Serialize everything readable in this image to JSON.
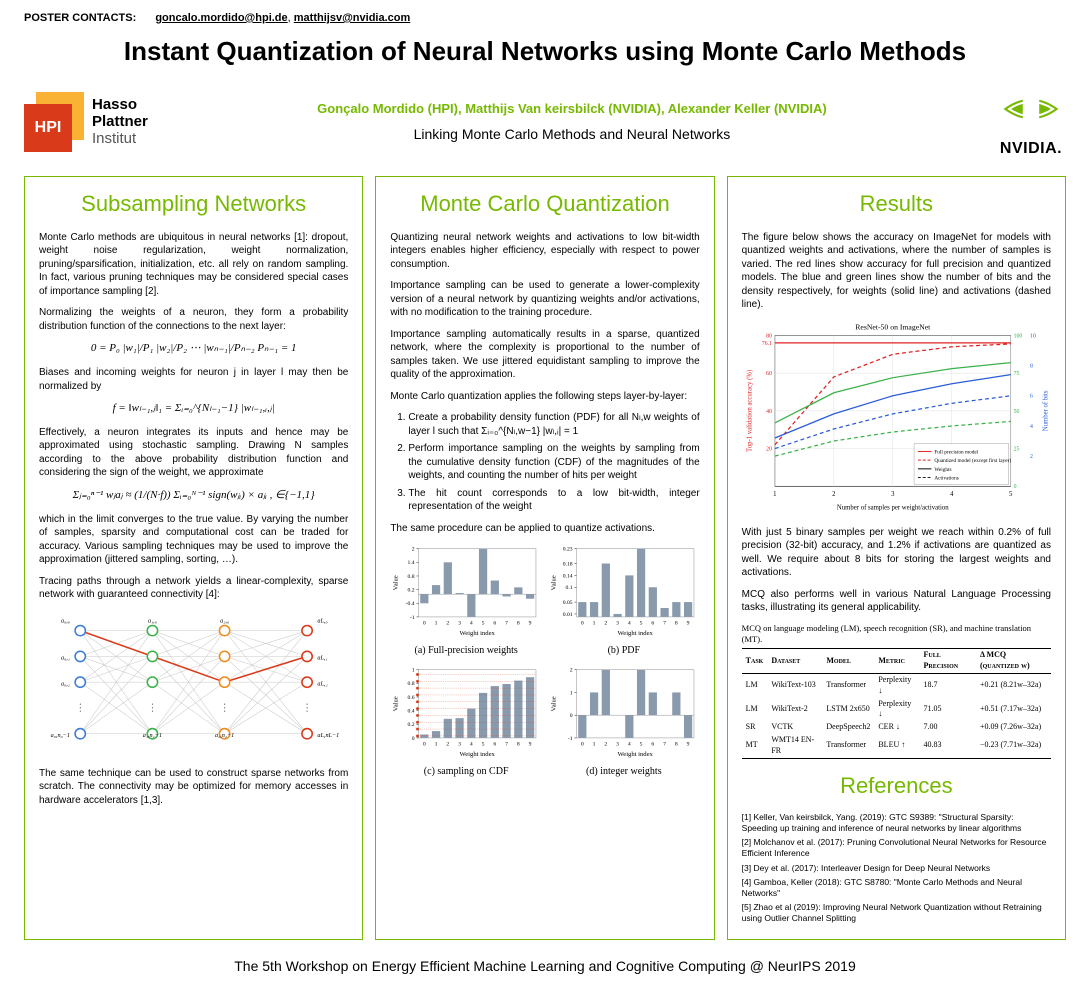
{
  "contacts": {
    "label": "POSTER CONTACTS:",
    "email1": "goncalo.mordido@hpi.de",
    "email2": "matthijsv@nvidia.com"
  },
  "title": "Instant Quantization of Neural Networks using Monte Carlo Methods",
  "logos": {
    "hpi_badge": "HPI",
    "hpi_text_line1": "Hasso",
    "hpi_text_line2": "Plattner",
    "hpi_text_line3": "Institut",
    "nvidia_name": "NVIDIA.",
    "nvidia_color": "#76b900"
  },
  "authors": "Gonçalo Mordido (HPI), Matthijs Van keirsbilck (NVIDIA),  Alexander Keller (NVIDIA)",
  "subtitle": "Linking Monte Carlo Methods and Neural Networks",
  "panel1": {
    "heading": "Subsampling Networks",
    "p1": "Monte Carlo methods are ubiquitous in neural networks [1]: dropout, weight noise regularization, weight normalization, pruning/sparsification, initialization, etc. all rely on random sampling. In fact, various pruning techniques may be considered special cases of importance sampling [2].",
    "p2": "Normalizing the weights of a neuron, they form a probability distribution function of the connections to the next layer:",
    "eq1": "0 = P₀  |w₁|/P₁  |w₂|/P₂  ⋯  |wₙ₋₁|/Pₙ₋₂  Pₙ₋₁ = 1",
    "p3": "Biases and incoming weights for neuron j in layer l may then be normalized by",
    "eq2": "f = ‖wₗ₋₁,ⱼ‖₁ = Σᵢ₌₀^{Nₗ₋₁−1} |wₗ₋₁,ᵢ,ⱼ|",
    "p4": "Effectively, a neuron integrates its inputs and hence may be approximated using stochastic sampling. Drawing N samples according to the above probability distribution function and considering the sign of the weight, we approximate",
    "eq3": "Σⱼ₌₀ⁿ⁻¹ wⱼaⱼ ≈ (1/(N·f)) Σᵢ₌₀ᴺ⁻¹ sign(wⱼᵢ) × aⱼᵢ ,    ∈{−1,1}",
    "p5": "which in the limit converges to the true value. By varying the number of samples, sparsity and computational cost can be traded for accuracy. Various sampling techniques may be used to improve the approximation (jittered sampling, sorting, …).",
    "p6": "Tracing paths through a network yields a linear-complexity, sparse network with guaranteed connectivity [4]:",
    "p7": "The same technique can be used to construct sparse networks from scratch. The connectivity may be optimized for memory accesses in hardware accelerators [1,3].",
    "net_colors": {
      "l0": "#3b7dd8",
      "l1": "#3bb24a",
      "l2": "#f08c1e",
      "l3": "#d93a1a",
      "edge_highlight": "#d93a1a",
      "edge_default": "#c8c8c8"
    },
    "net_labels": {
      "row_top": [
        "a₀,₀",
        "a₁,₀",
        "a₂,₀",
        "aL,₀"
      ],
      "row_1": [
        "a₀,₁",
        "a₁,₁",
        "a₂,₁",
        "aL,₁"
      ],
      "row_2": [
        "a₀,₂",
        "a₁,₂",
        "a₂,₂",
        "aL,₂"
      ],
      "row_bot": [
        "a₀,n₀−1",
        "a₁,n₁−1",
        "a₂,n₂−1",
        "aL,nL−1"
      ]
    }
  },
  "panel2": {
    "heading": "Monte Carlo Quantization",
    "p1": "Quantizing neural network weights and activations to low bit-width integers enables higher efficiency, especially with respect to power consumption.",
    "p2": "Importance sampling can be used to generate a lower-complexity version of a neural network by quantizing weights and/or activations, with no modification to the training procedure.",
    "p3": "Importance sampling automatically results in a sparse, quantized network, where the complexity is proportional to the number of samples taken. We use jittered equidistant sampling to improve the quality of the approximation.",
    "p4": "Monte Carlo quantization applies the following steps layer-by-layer:",
    "steps": [
      "Create a probability density function (PDF) for all Nₗ,w weights of layer l such that Σᵢ₌₀^{Nₗ,w−1} |wₗ,ᵢ| = 1",
      "Perform importance sampling on the weights by sampling from the cumulative density function (CDF) of the magnitudes of the weights, and counting the number of hits per weight",
      "The hit count corresponds to a low bit-width, integer representation of the weight"
    ],
    "p5": "The same procedure can be applied to quantize activations.",
    "charts": {
      "a": {
        "label": "(a) Full-precision weights",
        "x": [
          0,
          1,
          2,
          3,
          4,
          5,
          6,
          7,
          8,
          9
        ],
        "y": [
          -0.4,
          0.4,
          1.4,
          0.05,
          -1.0,
          2.0,
          0.6,
          -0.1,
          0.3,
          -0.2
        ],
        "ylim": [
          -1.0,
          2.0
        ],
        "yticks": [
          -1.0,
          -0.4,
          0.2,
          0.8,
          1.4,
          2.0
        ],
        "xlabel": "Weight index",
        "ylabel": "Value"
      },
      "b": {
        "label": "(b) PDF",
        "x": [
          0,
          1,
          2,
          3,
          4,
          5,
          6,
          7,
          8,
          9
        ],
        "y": [
          0.05,
          0.05,
          0.18,
          0.01,
          0.14,
          0.23,
          0.1,
          0.03,
          0.05,
          0.05
        ],
        "ylim": [
          0,
          0.23
        ],
        "yticks": [
          0.01,
          0.05,
          0.1,
          0.14,
          0.18,
          0.23
        ],
        "xlabel": "Weight index",
        "ylabel": "Value"
      },
      "c": {
        "label": "(c) sampling on CDF",
        "x": [
          0,
          1,
          2,
          3,
          4,
          5,
          6,
          7,
          8,
          9
        ],
        "y": [
          0.05,
          0.1,
          0.28,
          0.29,
          0.43,
          0.66,
          0.76,
          0.79,
          0.84,
          0.89
        ],
        "ylim": [
          0,
          1.0
        ],
        "yticks": [
          0,
          0.2,
          0.4,
          0.6,
          0.8,
          1.0
        ],
        "xlabel": "Weight index",
        "ylabel": "Value",
        "samples": [
          0.03,
          0.13,
          0.23,
          0.33,
          0.43,
          0.53,
          0.63,
          0.73,
          0.83,
          0.93
        ],
        "sample_color": "#d93a1a"
      },
      "d": {
        "label": "(d) integer weights",
        "x": [
          0,
          1,
          2,
          3,
          4,
          5,
          6,
          7,
          8,
          9
        ],
        "y": [
          -1,
          1,
          2,
          0,
          -1,
          2,
          1,
          0,
          1,
          -1
        ],
        "ylim": [
          -1,
          2
        ],
        "yticks": [
          -1,
          0,
          1,
          2
        ],
        "xlabel": "Weight index",
        "ylabel": "Value"
      },
      "bar_color": "#8a9aad",
      "grid_color": "#e0e0e0",
      "bar_width": 0.7
    }
  },
  "panel3": {
    "heading": "Results",
    "p1": "The figure below shows the accuracy on ImageNet for models with quantized weights and activations, where the number of samples is varied. The red lines show accuracy for full precision and quantized models. The blue and green lines show the number of bits and the density respectively, for weights (solid line) and activations (dashed line).",
    "chart": {
      "title": "ResNet-50 on ImageNet",
      "x": [
        1,
        2,
        3,
        4,
        5
      ],
      "xlabel": "Number of samples per weight/activation",
      "ylabel_left": "Top-1 validation accuracy (%)",
      "ylabel_right1": "Density (%)",
      "ylabel_right2": "Number of bits",
      "ylim_left": [
        0,
        80
      ],
      "yticks_left": [
        20,
        40,
        60,
        76.1,
        80
      ],
      "ylim_r1": [
        0,
        100
      ],
      "yticks_r1": [
        0,
        25,
        50,
        75,
        100
      ],
      "ylim_r2": [
        0,
        10
      ],
      "yticks_r2": [
        2,
        4,
        6,
        8,
        10
      ],
      "series": {
        "full_precision": {
          "color": "#e02020",
          "style": "solid",
          "y": [
            76.1,
            76.1,
            76.1,
            76.1,
            76.1
          ],
          "label": "Full precision model"
        },
        "quantized": {
          "color": "#e02020",
          "style": "dash",
          "y": [
            22,
            58,
            70,
            74,
            75.5
          ],
          "label": "Quantized model (except first layer)"
        },
        "bits_w": {
          "color": "#2a5cd8",
          "style": "solid",
          "y": [
            3.2,
            4.8,
            6.0,
            6.8,
            7.4
          ],
          "label": "Weights — bits"
        },
        "bits_a": {
          "color": "#2a5cd8",
          "style": "dash",
          "y": [
            2.5,
            3.8,
            4.8,
            5.5,
            6.0
          ],
          "label": "Activations — bits"
        },
        "dens_w": {
          "color": "#3bb24a",
          "style": "solid",
          "y": [
            42,
            62,
            72,
            78,
            82
          ],
          "label": "Weights — density"
        },
        "dens_a": {
          "color": "#3bb24a",
          "style": "dash",
          "y": [
            20,
            30,
            36,
            40,
            43
          ],
          "label": "Activations — density"
        }
      },
      "legend": [
        "Full precision model",
        "Quantized model (except first layer)",
        "Weights",
        "Activations"
      ],
      "background": "#ffffff",
      "grid_color": "#d8d8d8"
    },
    "p2": "With just 5 binary samples per weight we reach within 0.2% of full precision (32-bit) accuracy, and 1.2% if activations are quantized as well. We require about 8 bits for storing the largest weights and activations.",
    "p3": "MCQ also performs well in various Natural Language Processing tasks, illustrating its general applicability.",
    "table": {
      "caption": "MCQ on language modeling (LM), speech recognition (SR), and machine translation (MT).",
      "columns": [
        "Task",
        "Dataset",
        "Model",
        "Metric",
        "Full Precision",
        "Δ MCQ (quantized w)"
      ],
      "rows": [
        [
          "LM",
          "WikiText-103",
          "Transformer",
          "Perplexity ↓",
          "18.7",
          "+0.21 (8.21w–32a)"
        ],
        [
          "LM",
          "WikiText-2",
          "LSTM 2x650",
          "Perplexity ↓",
          "71.05",
          "+0.51 (7.17w–32a)"
        ],
        [
          "SR",
          "VCTK",
          "DeepSpeech2",
          "CER ↓",
          "7.00",
          "+0.09 (7.26w–32a)"
        ],
        [
          "MT",
          "WMT14 EN-FR",
          "Transformer",
          "BLEU ↑",
          "40.83",
          "−0.23 (7.71w–32a)"
        ]
      ]
    },
    "references_heading": "References",
    "references": [
      "[1] Keller, Van keirsbilck, Yang. (2019): GTC S9389: \"Structural Sparsity: Speeding up training and inference of neural networks by linear algorithms",
      "[2] Molchanov et al. (2017): Pruning Convolutional Neural Networks for Resource Efficient Inference",
      "[3] Dey et al. (2017): Interleaver Design for Deep Neural Networks",
      "[4] Gamboa, Keller (2018): GTC S8780: \"Monte Carlo Methods and Neural Networks\"",
      "[5] Zhao et al (2019): Improving Neural Network Quantization without Retraining using Outlier Channel Splitting"
    ]
  },
  "footer": "The 5th Workshop on Energy Efficient Machine Learning and Cognitive Computing @ NeurIPS 2019"
}
